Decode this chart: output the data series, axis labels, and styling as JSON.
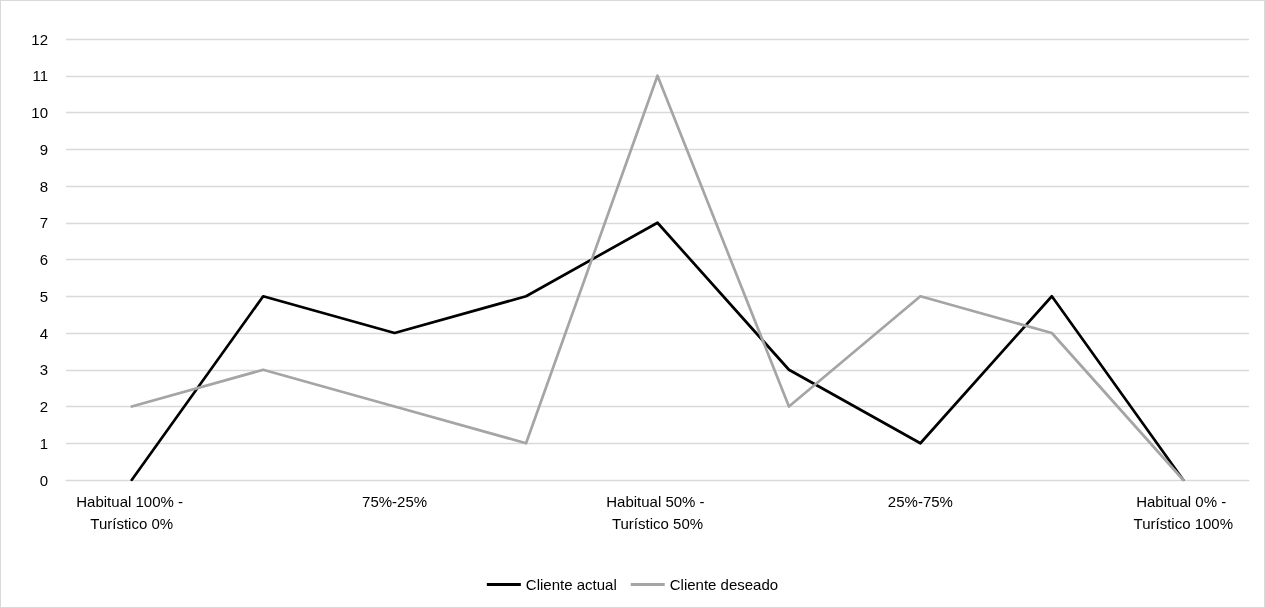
{
  "chart_data": {
    "type": "line",
    "categories": [
      "Habitual 100% - Turístico 0%",
      null,
      "75%-25%",
      null,
      "Habitual 50% - Turístico 50%",
      null,
      "25%-75%",
      null,
      "Habitual 0% - Turístico 100%"
    ],
    "series": [
      {
        "name": "Cliente actual",
        "color": "#000000",
        "values": [
          0,
          5,
          4,
          5,
          7,
          3,
          1,
          5,
          0
        ]
      },
      {
        "name": "Cliente deseado",
        "color": "#a5a5a5",
        "values": [
          2,
          3,
          2,
          1,
          11,
          2,
          5,
          4,
          0
        ]
      }
    ],
    "ylim": [
      0,
      12
    ],
    "yticks": [
      0,
      1,
      2,
      3,
      4,
      5,
      6,
      7,
      8,
      9,
      10,
      11,
      12
    ],
    "grid": "y",
    "legend": "bottom",
    "marker": "none",
    "line_style": "solid"
  }
}
